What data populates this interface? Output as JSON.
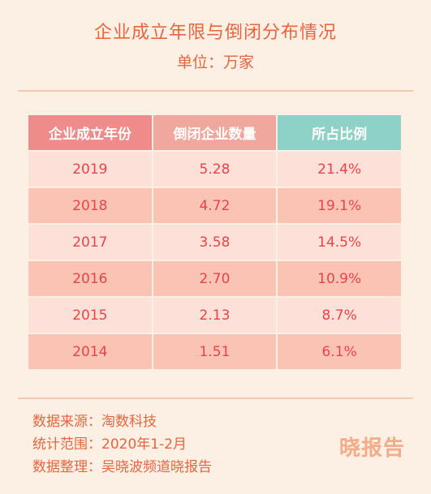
{
  "title": "企业成立年限与倒闭分布情况",
  "unit": "单位：万家",
  "table": {
    "headers": [
      "企业成立年份",
      "倒闭企业数量",
      "所占比例"
    ],
    "rows": [
      [
        "2019",
        "5.28",
        "21.4%"
      ],
      [
        "2018",
        "4.72",
        "19.1%"
      ],
      [
        "2017",
        "3.58",
        "14.5%"
      ],
      [
        "2016",
        "2.70",
        "10.9%"
      ],
      [
        "2015",
        "2.13",
        "8.7%"
      ],
      [
        "2014",
        "1.51",
        "6.1%"
      ]
    ]
  },
  "footer": {
    "source": "数据来源：淘数科技",
    "period": "统计范围：2020年1-2月",
    "compiled_by": "数据整理：吴晓波频道晓报告"
  },
  "watermark": "晓报告",
  "colors": {
    "background": "#fcefe3",
    "accent_text": "#e8653f",
    "cell_text": "#e8444a",
    "header_year": "#ef8b8b",
    "header_count": "#f0a89e",
    "header_ratio": "#8dd1c7",
    "row_light": "#fde1d8",
    "row_dark": "#fbc3b3"
  }
}
